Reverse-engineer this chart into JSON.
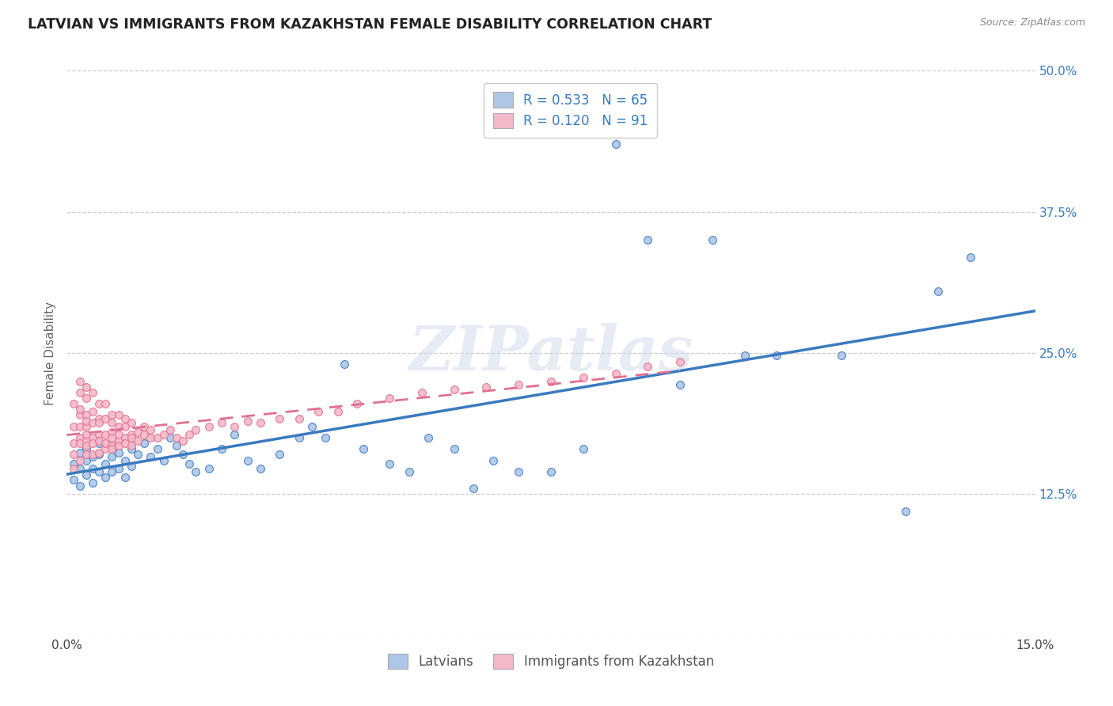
{
  "title": "LATVIAN VS IMMIGRANTS FROM KAZAKHSTAN FEMALE DISABILITY CORRELATION CHART",
  "source": "Source: ZipAtlas.com",
  "ylabel": "Female Disability",
  "xlim": [
    0.0,
    0.15
  ],
  "ylim": [
    0.0,
    0.5
  ],
  "series1_label": "Latvians",
  "series1_R": "0.533",
  "series1_N": "65",
  "series1_color": "#aec6e8",
  "series1_line_color": "#3a7abf",
  "series2_label": "Immigrants from Kazakhstan",
  "series2_R": "0.120",
  "series2_N": "91",
  "series2_color": "#f4b8c8",
  "series2_line_color": "#e07090",
  "legend_R_color": "#3a7abf",
  "watermark": "ZIPatlas",
  "background_color": "#ffffff",
  "ytick_positions": [
    0.0,
    0.125,
    0.25,
    0.375,
    0.5
  ],
  "ytick_labels": [
    "",
    "12.5%",
    "25.0%",
    "37.5%",
    "50.0%"
  ],
  "latvians_x": [
    0.001,
    0.001,
    0.002,
    0.002,
    0.002,
    0.003,
    0.003,
    0.003,
    0.004,
    0.004,
    0.004,
    0.005,
    0.005,
    0.005,
    0.006,
    0.006,
    0.007,
    0.007,
    0.007,
    0.008,
    0.008,
    0.009,
    0.009,
    0.01,
    0.01,
    0.011,
    0.012,
    0.013,
    0.014,
    0.015,
    0.016,
    0.017,
    0.018,
    0.019,
    0.02,
    0.022,
    0.024,
    0.026,
    0.028,
    0.03,
    0.033,
    0.036,
    0.038,
    0.04,
    0.043,
    0.046,
    0.05,
    0.053,
    0.056,
    0.06,
    0.063,
    0.066,
    0.07,
    0.075,
    0.08,
    0.085,
    0.09,
    0.095,
    0.1,
    0.105,
    0.11,
    0.12,
    0.13,
    0.135,
    0.14
  ],
  "latvians_y": [
    0.152,
    0.138,
    0.162,
    0.148,
    0.132,
    0.155,
    0.142,
    0.165,
    0.148,
    0.158,
    0.135,
    0.16,
    0.145,
    0.17,
    0.152,
    0.14,
    0.158,
    0.168,
    0.145,
    0.162,
    0.148,
    0.155,
    0.14,
    0.165,
    0.15,
    0.16,
    0.17,
    0.158,
    0.165,
    0.155,
    0.175,
    0.168,
    0.16,
    0.152,
    0.145,
    0.148,
    0.165,
    0.178,
    0.155,
    0.148,
    0.16,
    0.175,
    0.185,
    0.175,
    0.24,
    0.165,
    0.152,
    0.145,
    0.175,
    0.165,
    0.13,
    0.155,
    0.145,
    0.145,
    0.165,
    0.435,
    0.35,
    0.222,
    0.35,
    0.248,
    0.248,
    0.248,
    0.11,
    0.305,
    0.335
  ],
  "kazakhstan_x": [
    0.001,
    0.001,
    0.001,
    0.001,
    0.001,
    0.002,
    0.002,
    0.002,
    0.002,
    0.002,
    0.002,
    0.002,
    0.002,
    0.003,
    0.003,
    0.003,
    0.003,
    0.003,
    0.003,
    0.003,
    0.003,
    0.003,
    0.004,
    0.004,
    0.004,
    0.004,
    0.004,
    0.004,
    0.005,
    0.005,
    0.005,
    0.005,
    0.005,
    0.005,
    0.006,
    0.006,
    0.006,
    0.006,
    0.006,
    0.007,
    0.007,
    0.007,
    0.007,
    0.007,
    0.007,
    0.008,
    0.008,
    0.008,
    0.008,
    0.008,
    0.009,
    0.009,
    0.009,
    0.009,
    0.01,
    0.01,
    0.01,
    0.01,
    0.011,
    0.011,
    0.012,
    0.012,
    0.013,
    0.013,
    0.014,
    0.015,
    0.016,
    0.017,
    0.018,
    0.019,
    0.02,
    0.022,
    0.024,
    0.026,
    0.028,
    0.03,
    0.033,
    0.036,
    0.039,
    0.042,
    0.045,
    0.05,
    0.055,
    0.06,
    0.065,
    0.07,
    0.075,
    0.08,
    0.085,
    0.09,
    0.095
  ],
  "kazakhstan_y": [
    0.148,
    0.17,
    0.185,
    0.205,
    0.16,
    0.155,
    0.175,
    0.195,
    0.215,
    0.225,
    0.17,
    0.185,
    0.2,
    0.16,
    0.172,
    0.185,
    0.195,
    0.21,
    0.22,
    0.178,
    0.168,
    0.19,
    0.16,
    0.175,
    0.188,
    0.198,
    0.215,
    0.17,
    0.162,
    0.178,
    0.192,
    0.205,
    0.172,
    0.188,
    0.165,
    0.178,
    0.192,
    0.205,
    0.17,
    0.168,
    0.18,
    0.195,
    0.175,
    0.188,
    0.165,
    0.172,
    0.185,
    0.195,
    0.178,
    0.168,
    0.175,
    0.185,
    0.192,
    0.17,
    0.178,
    0.188,
    0.175,
    0.168,
    0.18,
    0.172,
    0.178,
    0.185,
    0.175,
    0.182,
    0.175,
    0.178,
    0.182,
    0.175,
    0.172,
    0.178,
    0.182,
    0.185,
    0.188,
    0.185,
    0.19,
    0.188,
    0.192,
    0.192,
    0.198,
    0.198,
    0.205,
    0.21,
    0.215,
    0.218,
    0.22,
    0.222,
    0.225,
    0.228,
    0.232,
    0.238,
    0.242
  ]
}
